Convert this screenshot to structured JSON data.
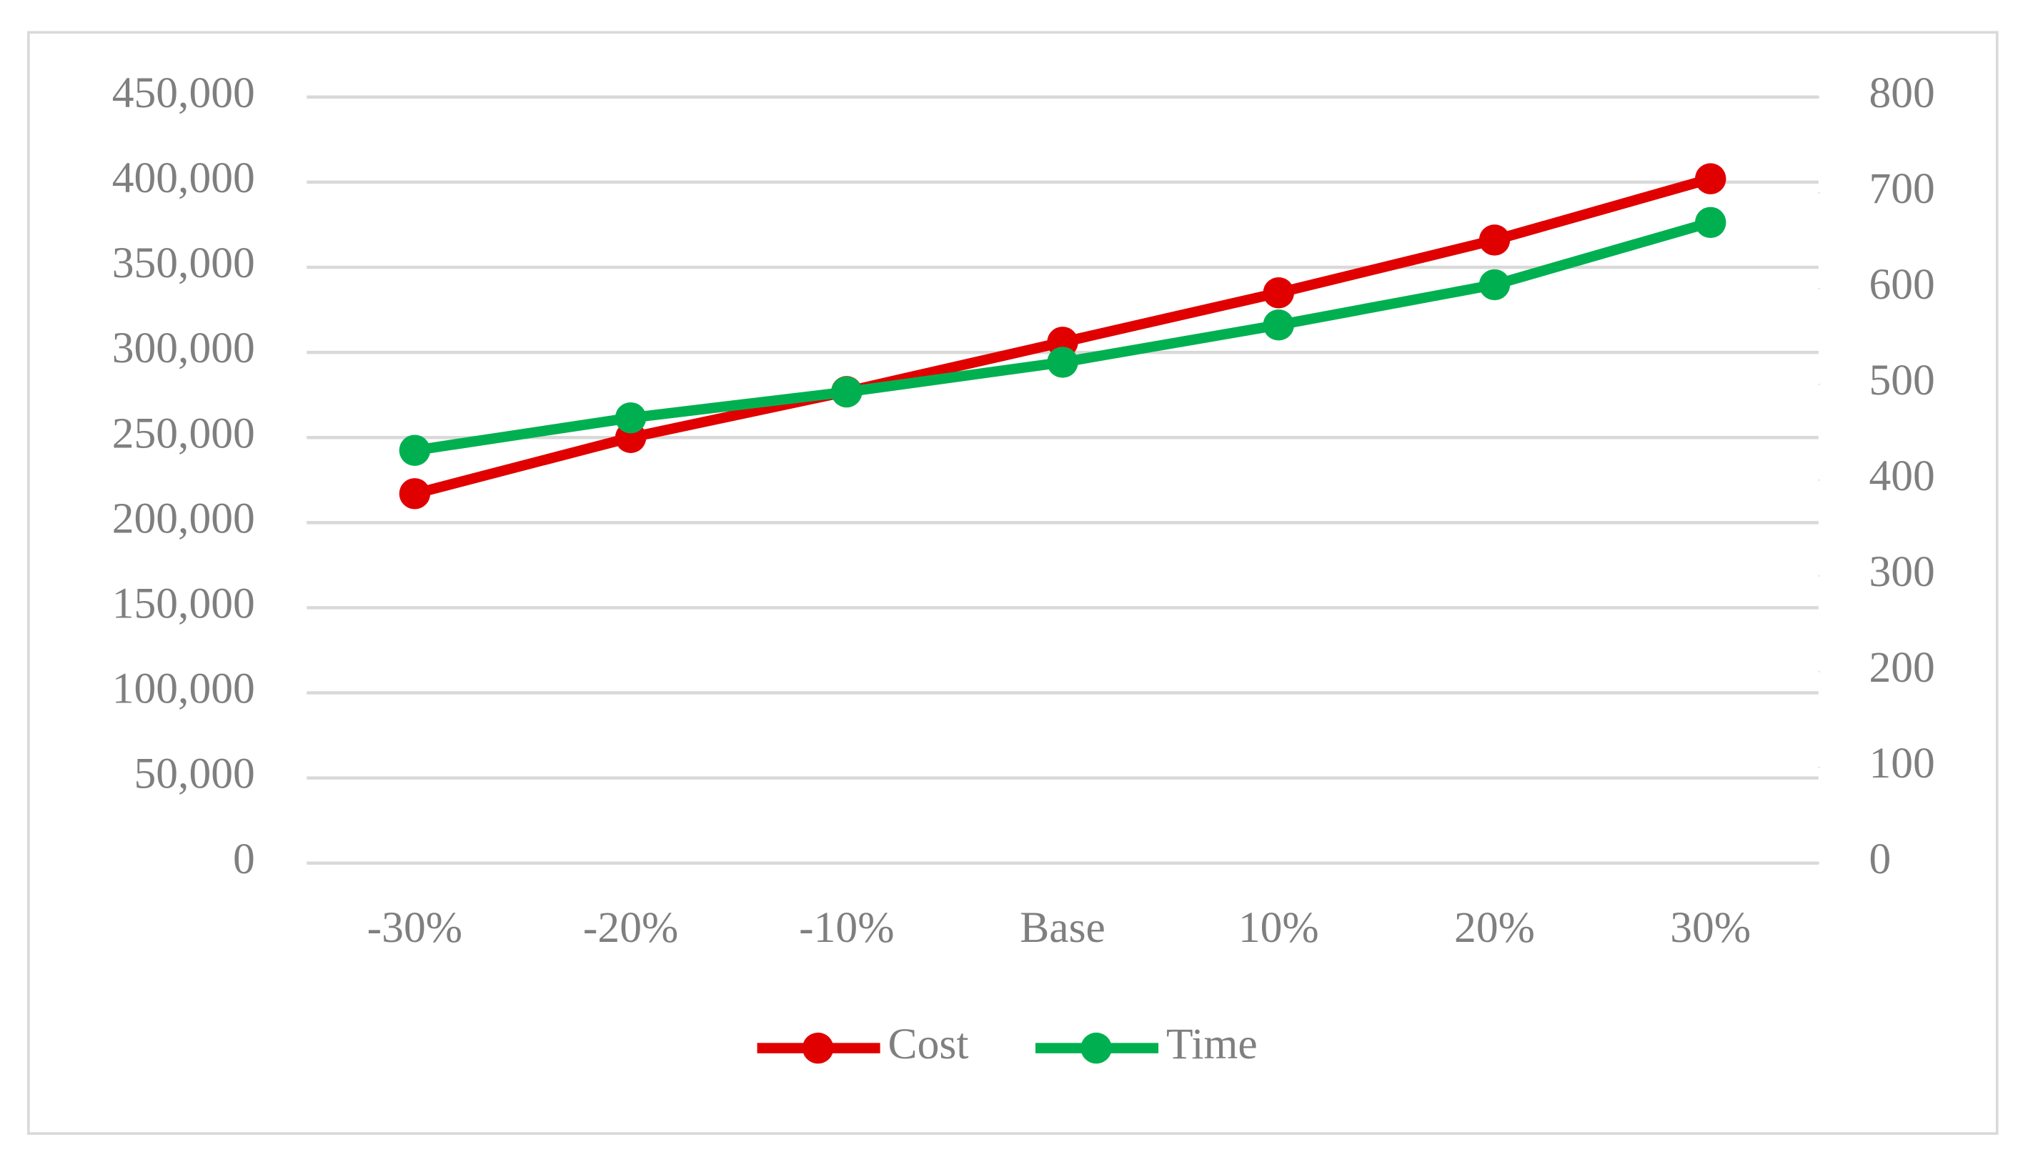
{
  "chart_data": {
    "type": "line",
    "categories": [
      "-30%",
      "-20%",
      "-10%",
      "Base",
      "10%",
      "20%",
      "30%"
    ],
    "series": [
      {
        "name": "Cost",
        "color": "#e00000",
        "values": [
          217000,
          250000,
          277000,
          306000,
          335000,
          366000,
          402000
        ]
      },
      {
        "name": "Time",
        "color": "#00b050",
        "axis": "y2",
        "values": [
          431,
          465,
          492,
          523,
          562,
          604,
          669
        ]
      }
    ],
    "ylim": [
      0,
      450000
    ],
    "yticks": [
      0,
      {
        "value": 50000,
        "label": "50,000"
      },
      {
        "value": 100000,
        "label": "100,000"
      },
      {
        "value": 150000,
        "label": "150,000"
      },
      {
        "value": 200000,
        "label": "200,000"
      },
      {
        "value": 250000,
        "label": "250,000"
      },
      {
        "value": 300000,
        "label": "300,000"
      },
      {
        "value": 350000,
        "label": "350,000"
      },
      {
        "value": 400000,
        "label": "400,000"
      },
      {
        "value": 450000,
        "label": "450,000"
      }
    ],
    "y2lim": [
      0,
      800
    ],
    "y2ticks": [
      0,
      100,
      200,
      300,
      400,
      500,
      600,
      700,
      800
    ],
    "grid": true,
    "legend": "bottom"
  }
}
